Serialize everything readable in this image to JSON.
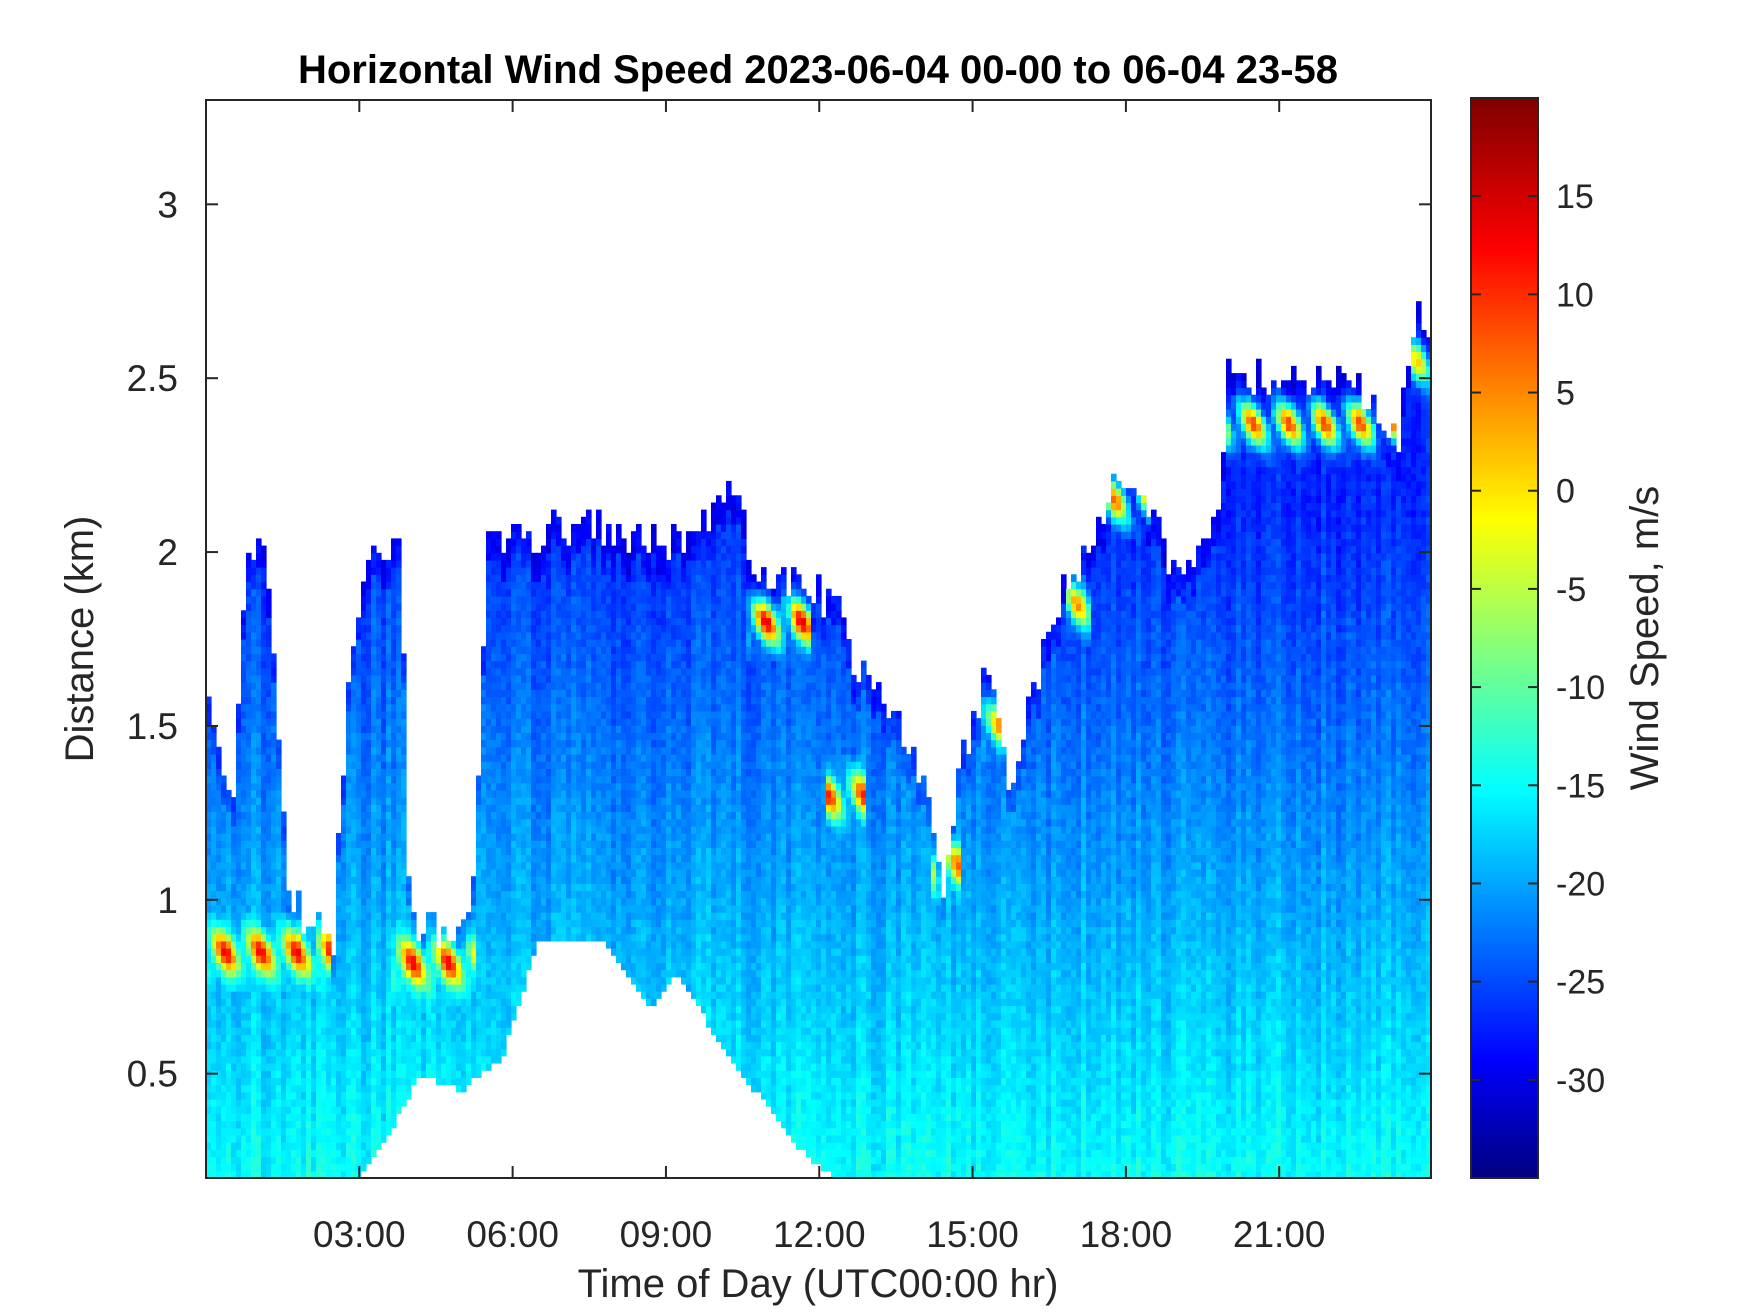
{
  "chart_data": {
    "type": "heatmap",
    "title": "Horizontal Wind Speed 2023-06-04 00-00 to 06-04 23-58",
    "xlabel": "Time of Day (UTC00:00 hr)",
    "ylabel": "Distance (km)",
    "colorbar_label": "Wind Speed, m/s",
    "colormap": "jet",
    "x_range_hours": [
      0,
      23.97
    ],
    "y_range_km": [
      0.2,
      3.3
    ],
    "x_ticks": [
      {
        "value": 3,
        "label": "03:00"
      },
      {
        "value": 6,
        "label": "06:00"
      },
      {
        "value": 9,
        "label": "09:00"
      },
      {
        "value": 12,
        "label": "12:00"
      },
      {
        "value": 15,
        "label": "15:00"
      },
      {
        "value": 18,
        "label": "18:00"
      },
      {
        "value": 21,
        "label": "21:00"
      }
    ],
    "y_ticks": [
      {
        "value": 0.5,
        "label": "0.5"
      },
      {
        "value": 1,
        "label": "1"
      },
      {
        "value": 1.5,
        "label": "1.5"
      },
      {
        "value": 2,
        "label": "2"
      },
      {
        "value": 2.5,
        "label": "2.5"
      },
      {
        "value": 3,
        "label": "3"
      }
    ],
    "color_range": [
      -35,
      20
    ],
    "color_ticks": [
      {
        "value": 15,
        "label": "15"
      },
      {
        "value": 10,
        "label": "10"
      },
      {
        "value": 5,
        "label": "5"
      },
      {
        "value": 0,
        "label": "0"
      },
      {
        "value": -5,
        "label": "-5"
      },
      {
        "value": -10,
        "label": "-10"
      },
      {
        "value": -15,
        "label": "-15"
      },
      {
        "value": -20,
        "label": "-20"
      },
      {
        "value": -25,
        "label": "-25"
      },
      {
        "value": -30,
        "label": "-30"
      }
    ],
    "grid": false,
    "coverage_top_km": [
      {
        "t": 0.0,
        "top": 1.6
      },
      {
        "t": 0.5,
        "top": 1.25
      },
      {
        "t": 0.8,
        "top": 2.0
      },
      {
        "t": 1.2,
        "top": 2.0
      },
      {
        "t": 1.6,
        "top": 1.0
      },
      {
        "t": 2.0,
        "top": 0.95
      },
      {
        "t": 2.5,
        "top": 0.9
      },
      {
        "t": 2.8,
        "top": 1.7
      },
      {
        "t": 3.3,
        "top": 2.0
      },
      {
        "t": 3.8,
        "top": 2.05
      },
      {
        "t": 4.0,
        "top": 0.9
      },
      {
        "t": 5.2,
        "top": 0.92
      },
      {
        "t": 5.5,
        "top": 2.0
      },
      {
        "t": 6.5,
        "top": 2.05
      },
      {
        "t": 7.5,
        "top": 2.1
      },
      {
        "t": 9.0,
        "top": 2.0
      },
      {
        "t": 10.0,
        "top": 2.1
      },
      {
        "t": 10.5,
        "top": 2.22
      },
      {
        "t": 10.6,
        "top": 1.95
      },
      {
        "t": 11.8,
        "top": 1.9
      },
      {
        "t": 12.3,
        "top": 1.85
      },
      {
        "t": 12.6,
        "top": 1.7
      },
      {
        "t": 13.2,
        "top": 1.6
      },
      {
        "t": 14.0,
        "top": 1.35
      },
      {
        "t": 14.4,
        "top": 1.0
      },
      {
        "t": 14.8,
        "top": 1.4
      },
      {
        "t": 15.3,
        "top": 1.65
      },
      {
        "t": 15.8,
        "top": 1.3
      },
      {
        "t": 16.2,
        "top": 1.6
      },
      {
        "t": 16.8,
        "top": 1.9
      },
      {
        "t": 17.3,
        "top": 2.0
      },
      {
        "t": 17.8,
        "top": 2.2
      },
      {
        "t": 18.3,
        "top": 2.15
      },
      {
        "t": 19.0,
        "top": 1.95
      },
      {
        "t": 19.8,
        "top": 2.05
      },
      {
        "t": 20.0,
        "top": 2.5
      },
      {
        "t": 21.0,
        "top": 2.5
      },
      {
        "t": 22.0,
        "top": 2.5
      },
      {
        "t": 22.5,
        "top": 2.5
      },
      {
        "t": 23.3,
        "top": 2.3
      },
      {
        "t": 23.7,
        "top": 2.75
      },
      {
        "t": 23.97,
        "top": 2.6
      }
    ],
    "coverage_bottom_km": [
      {
        "t": 0.0,
        "top": 0.2
      },
      {
        "t": 3.0,
        "top": 0.2
      },
      {
        "t": 3.5,
        "top": 0.3
      },
      {
        "t": 4.2,
        "top": 0.5
      },
      {
        "t": 5.0,
        "top": 0.45
      },
      {
        "t": 5.8,
        "top": 0.55
      },
      {
        "t": 6.5,
        "top": 0.88
      },
      {
        "t": 7.8,
        "top": 0.88
      },
      {
        "t": 8.7,
        "top": 0.68
      },
      {
        "t": 9.2,
        "top": 0.8
      },
      {
        "t": 10.0,
        "top": 0.6
      },
      {
        "t": 11.5,
        "top": 0.3
      },
      {
        "t": 12.3,
        "top": 0.2
      },
      {
        "t": 23.97,
        "top": 0.2
      }
    ],
    "high_speed_features": [
      {
        "t_start": 0.0,
        "t_end": 2.4,
        "z_center": 0.85,
        "value": 14
      },
      {
        "t_start": 3.6,
        "t_end": 5.3,
        "z_center": 0.82,
        "value": 14
      },
      {
        "t_start": 10.6,
        "t_end": 11.8,
        "z_center": 1.8,
        "value": 15
      },
      {
        "t_start": 12.1,
        "t_end": 12.9,
        "z_center": 1.3,
        "value": 12
      },
      {
        "t_start": 14.2,
        "t_end": 14.8,
        "z_center": 1.1,
        "value": 8
      },
      {
        "t_start": 15.2,
        "t_end": 15.8,
        "z_center": 1.5,
        "value": 6
      },
      {
        "t_start": 16.8,
        "t_end": 17.3,
        "z_center": 1.85,
        "value": 6
      },
      {
        "t_start": 17.5,
        "t_end": 18.5,
        "z_center": 2.15,
        "value": 8
      },
      {
        "t_start": 20.0,
        "t_end": 23.3,
        "z_center": 2.37,
        "value": 10
      },
      {
        "t_start": 23.6,
        "t_end": 23.97,
        "z_center": 2.55,
        "value": 2
      }
    ],
    "background_value_range": [
      -26,
      -14
    ]
  }
}
